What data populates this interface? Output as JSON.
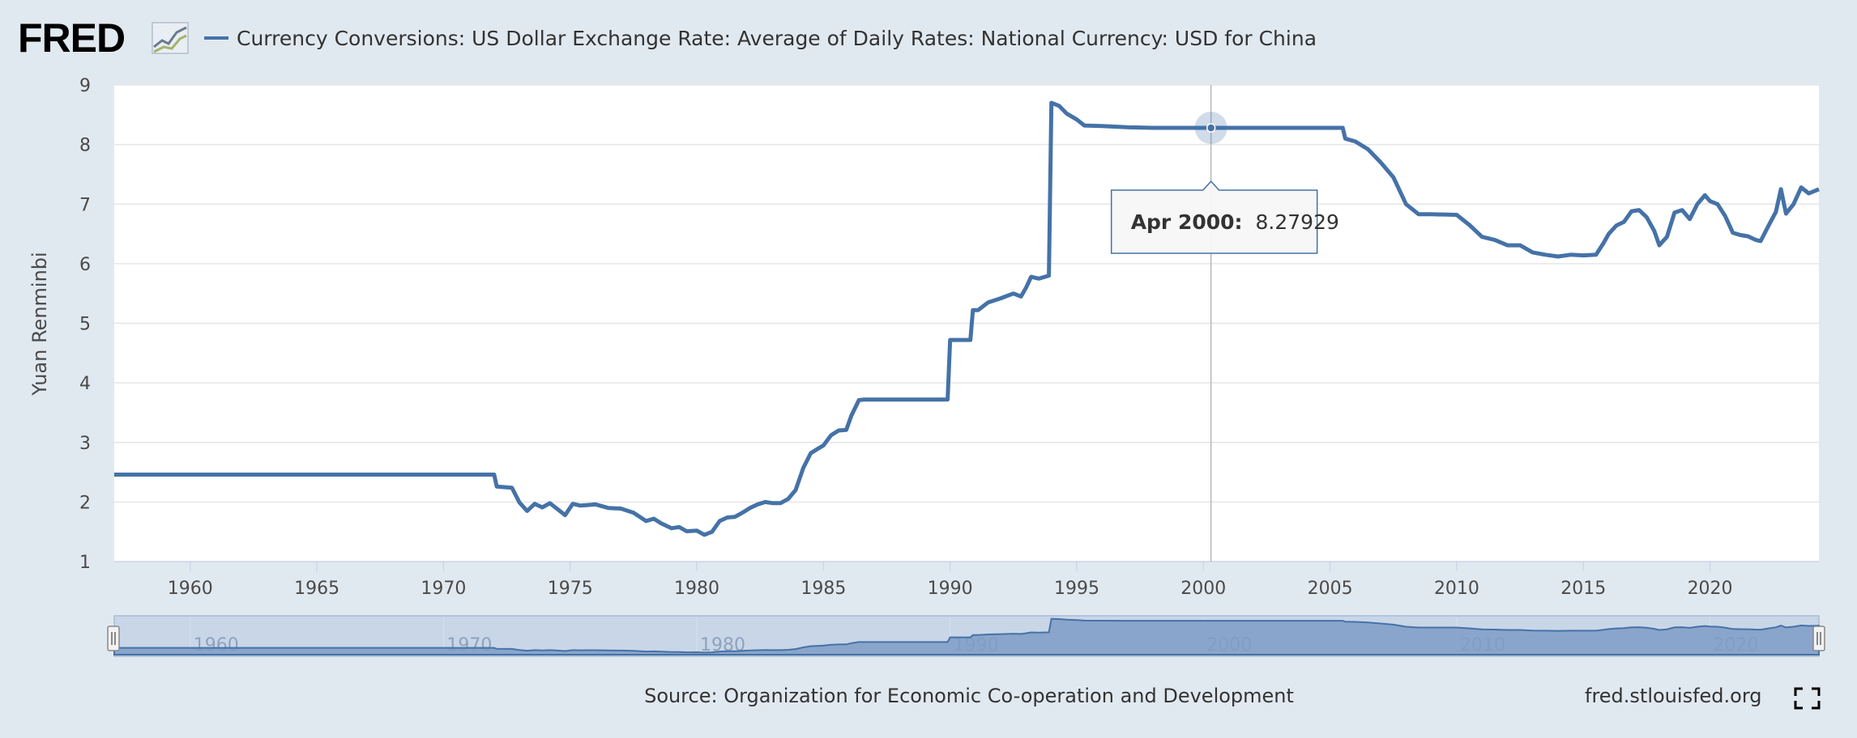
{
  "header": {
    "logo_text": "FRED",
    "logo_icon": "fred-chart-icon",
    "series_title": "Currency Conversions: US Dollar Exchange Rate: Average of Daily Rates: National Currency: USD for China"
  },
  "colors": {
    "background": "#e1e9f0",
    "plot_bg": "#ffffff",
    "series": "#4572a7",
    "grid": "#e6e6e6",
    "navigator_fill": "#a9bbd6"
  },
  "chart_data": {
    "type": "line",
    "title": "Currency Conversions: US Dollar Exchange Rate: Average of Daily Rates: National Currency: USD for China",
    "xlabel": "",
    "ylabel": "Yuan Renminbi",
    "xlim": [
      1957,
      2024.3
    ],
    "ylim": [
      1,
      9
    ],
    "x_ticks": [
      "1960",
      "1965",
      "1970",
      "1975",
      "1980",
      "1985",
      "1990",
      "1995",
      "2000",
      "2005",
      "2010",
      "2015",
      "2020"
    ],
    "y_ticks": [
      "1",
      "2",
      "3",
      "4",
      "5",
      "6",
      "7",
      "8",
      "9"
    ],
    "grid": true,
    "series": [
      {
        "name": "USD for China",
        "x": [
          1957,
          1972.0,
          1972.1,
          1972.7,
          1973.0,
          1973.3,
          1973.6,
          1973.9,
          1974.2,
          1974.5,
          1974.8,
          1975.1,
          1975.4,
          1975.7,
          1976.0,
          1976.5,
          1977.0,
          1977.5,
          1978.0,
          1978.3,
          1978.6,
          1979.0,
          1979.3,
          1979.6,
          1980.0,
          1980.3,
          1980.6,
          1980.9,
          1981.2,
          1981.5,
          1981.8,
          1982.1,
          1982.4,
          1982.7,
          1983.0,
          1983.3,
          1983.6,
          1983.9,
          1984.2,
          1984.5,
          1984.8,
          1985.0,
          1985.3,
          1985.6,
          1985.9,
          1986.1,
          1986.4,
          1986.6,
          1986.8,
          1987.0,
          1987.5,
          1988.0,
          1989.0,
          1989.9,
          1990.0,
          1990.8,
          1990.9,
          1991.1,
          1991.5,
          1992.0,
          1992.5,
          1992.8,
          1993.0,
          1993.2,
          1993.5,
          1993.9,
          1994.0,
          1994.3,
          1994.6,
          1995.0,
          1995.3,
          1996.0,
          1997.0,
          1998.0,
          2000.3,
          2005.5,
          2005.6,
          2006.0,
          2006.5,
          2007.0,
          2007.5,
          2008.0,
          2008.5,
          2009.0,
          2010.0,
          2010.5,
          2011.0,
          2011.5,
          2012.0,
          2012.5,
          2013.0,
          2013.5,
          2014.0,
          2014.5,
          2015.0,
          2015.5,
          2015.8,
          2016.0,
          2016.3,
          2016.6,
          2016.9,
          2017.2,
          2017.5,
          2017.8,
          2018.0,
          2018.3,
          2018.6,
          2018.9,
          2019.2,
          2019.5,
          2019.8,
          2020.0,
          2020.3,
          2020.6,
          2020.9,
          2021.2,
          2021.5,
          2021.8,
          2022.0,
          2022.3,
          2022.6,
          2022.8,
          2023.0,
          2023.3,
          2023.6,
          2023.9,
          2024.3
        ],
        "values": [
          2.46,
          2.46,
          2.26,
          2.24,
          1.99,
          1.85,
          1.97,
          1.91,
          1.98,
          1.88,
          1.78,
          1.97,
          1.94,
          1.95,
          1.96,
          1.9,
          1.89,
          1.82,
          1.68,
          1.72,
          1.64,
          1.56,
          1.58,
          1.51,
          1.52,
          1.45,
          1.5,
          1.68,
          1.74,
          1.75,
          1.82,
          1.9,
          1.96,
          2.0,
          1.98,
          1.98,
          2.05,
          2.2,
          2.57,
          2.82,
          2.9,
          2.95,
          3.12,
          3.2,
          3.21,
          3.45,
          3.71,
          3.72,
          3.72,
          3.72,
          3.72,
          3.72,
          3.72,
          3.72,
          4.72,
          4.72,
          5.22,
          5.22,
          5.35,
          5.42,
          5.5,
          5.45,
          5.6,
          5.78,
          5.75,
          5.8,
          8.7,
          8.65,
          8.52,
          8.42,
          8.32,
          8.31,
          8.29,
          8.28,
          8.28,
          8.28,
          8.1,
          8.05,
          7.92,
          7.7,
          7.45,
          7.0,
          6.83,
          6.83,
          6.82,
          6.65,
          6.45,
          6.4,
          6.31,
          6.31,
          6.19,
          6.15,
          6.12,
          6.15,
          6.14,
          6.15,
          6.35,
          6.5,
          6.64,
          6.7,
          6.88,
          6.9,
          6.78,
          6.55,
          6.31,
          6.45,
          6.86,
          6.9,
          6.75,
          7.0,
          7.15,
          7.05,
          7.0,
          6.8,
          6.52,
          6.48,
          6.46,
          6.4,
          6.38,
          6.63,
          6.87,
          7.25,
          6.84,
          7.0,
          7.28,
          7.18,
          7.25
        ]
      }
    ],
    "tooltip": {
      "date_label": "Apr 2000:",
      "value_label": "8.27929",
      "x": 2000.3,
      "y": 8.27929
    },
    "navigator_ticks": [
      "1960",
      "1970",
      "1980",
      "1990",
      "2000",
      "2010",
      "2020"
    ]
  },
  "footer": {
    "source": "Source: Organization for Economic Co-operation and Development",
    "site": "fred.stlouisfed.org",
    "fullscreen_icon": "fullscreen-icon"
  }
}
